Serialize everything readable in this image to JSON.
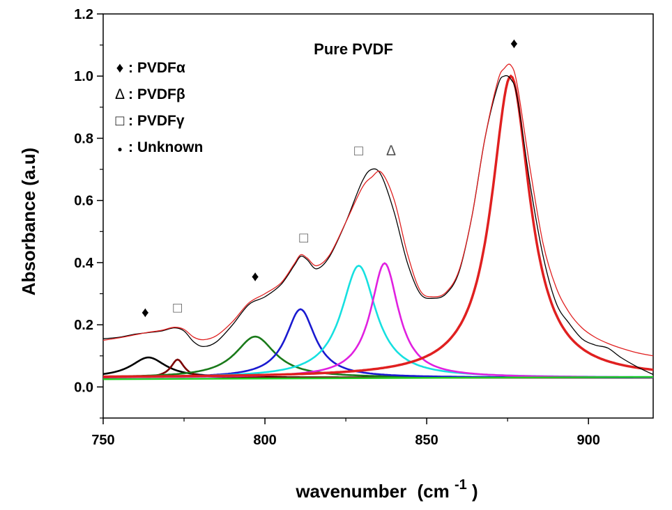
{
  "chart_data": {
    "type": "line",
    "title": "Pure PVDF",
    "xlabel": "wavenumber",
    "xlabel_unit": "(cm",
    "xlabel_unit_exp": "-1",
    "xlabel_unit_close": ")",
    "ylabel": "Absorbance (a.u)",
    "xlim": [
      750,
      920
    ],
    "ylim": [
      -0.1,
      1.2
    ],
    "x_ticks": [
      750,
      800,
      850,
      900
    ],
    "x_tick_labels": [
      "750",
      "800",
      "850",
      "900"
    ],
    "y_ticks": [
      0.0,
      0.2,
      0.4,
      0.6,
      0.8,
      1.0,
      1.2
    ],
    "y_tick_labels": [
      "0.0",
      "0.2",
      "0.4",
      "0.6",
      "0.8",
      "1.0",
      "1.2"
    ],
    "grid": false,
    "baseline": 0.03,
    "legend": {
      "placement": "top-left",
      "entries": [
        {
          "symbol": "♦",
          "text": ": PVDFα"
        },
        {
          "symbol": "Δ",
          "text": ": PVDFβ"
        },
        {
          "symbol": "□",
          "text": ": PVDFγ"
        },
        {
          "symbol": "●",
          "text": ": Unknown"
        }
      ]
    },
    "annotations": [
      {
        "symbol": "♦",
        "x": 763,
        "y": 0.225
      },
      {
        "symbol": "□",
        "x": 773,
        "y": 0.24
      },
      {
        "symbol": "♦",
        "x": 797,
        "y": 0.34
      },
      {
        "symbol": "□",
        "x": 812,
        "y": 0.465
      },
      {
        "symbol": "□",
        "x": 829,
        "y": 0.745
      },
      {
        "symbol": "Δ",
        "x": 839,
        "y": 0.745
      },
      {
        "symbol": "♦",
        "x": 877,
        "y": 1.09
      }
    ],
    "peaks": [
      {
        "center": 764,
        "height": 0.065,
        "width": 6.5,
        "color": "#000000"
      },
      {
        "center": 773,
        "height": 0.058,
        "width": 2.5,
        "color": "#7a0000"
      },
      {
        "center": 797,
        "height": 0.132,
        "width": 7.5,
        "color": "#1a7a1a"
      },
      {
        "center": 811,
        "height": 0.22,
        "width": 5.5,
        "color": "#1a1ad0"
      },
      {
        "center": 829,
        "height": 0.36,
        "width": 6.5,
        "color": "#16e0e0"
      },
      {
        "center": 837,
        "height": 0.368,
        "width": 5.2,
        "color": "#e020e0"
      },
      {
        "center": 876,
        "height": 0.97,
        "width": 7.2,
        "color": "#e02020"
      }
    ],
    "series": [
      {
        "name": "",
        "color": "#000000",
        "x": [
          750,
          755,
          760,
          764,
          768,
          772,
          775,
          778,
          781,
          785,
          790,
          795,
          800,
          805,
          809,
          811,
          813,
          816,
          820,
          825,
          830,
          833,
          836,
          840,
          844,
          848,
          852,
          856,
          860,
          864,
          868,
          872,
          874,
          876,
          878,
          882,
          886,
          890,
          894,
          898,
          902,
          906,
          910,
          915,
          920
        ],
        "y": [
          0.155,
          0.16,
          0.17,
          0.175,
          0.18,
          0.19,
          0.18,
          0.145,
          0.13,
          0.145,
          0.2,
          0.265,
          0.29,
          0.33,
          0.39,
          0.42,
          0.41,
          0.38,
          0.42,
          0.53,
          0.66,
          0.7,
          0.68,
          0.56,
          0.4,
          0.3,
          0.285,
          0.3,
          0.37,
          0.55,
          0.8,
          0.97,
          1.0,
          0.99,
          0.93,
          0.65,
          0.42,
          0.27,
          0.205,
          0.155,
          0.135,
          0.125,
          0.095,
          0.065,
          0.04
        ]
      },
      {
        "name": "",
        "color": "#e02020",
        "x": [
          750,
          755,
          760,
          764,
          768,
          772,
          775,
          778,
          781,
          785,
          790,
          795,
          800,
          805,
          809,
          811,
          813,
          816,
          820,
          825,
          830,
          833,
          836,
          840,
          844,
          848,
          852,
          856,
          860,
          864,
          868,
          872,
          874,
          876,
          878,
          882,
          886,
          890,
          894,
          898,
          902,
          906,
          910,
          915,
          920
        ],
        "y": [
          0.15,
          0.158,
          0.168,
          0.176,
          0.182,
          0.192,
          0.185,
          0.16,
          0.152,
          0.165,
          0.21,
          0.27,
          0.3,
          0.335,
          0.395,
          0.425,
          0.415,
          0.39,
          0.425,
          0.53,
          0.64,
          0.675,
          0.69,
          0.6,
          0.43,
          0.31,
          0.29,
          0.305,
          0.375,
          0.55,
          0.8,
          0.985,
          1.025,
          1.035,
          0.97,
          0.7,
          0.46,
          0.32,
          0.24,
          0.19,
          0.16,
          0.14,
          0.125,
          0.11,
          0.1
        ]
      }
    ]
  }
}
